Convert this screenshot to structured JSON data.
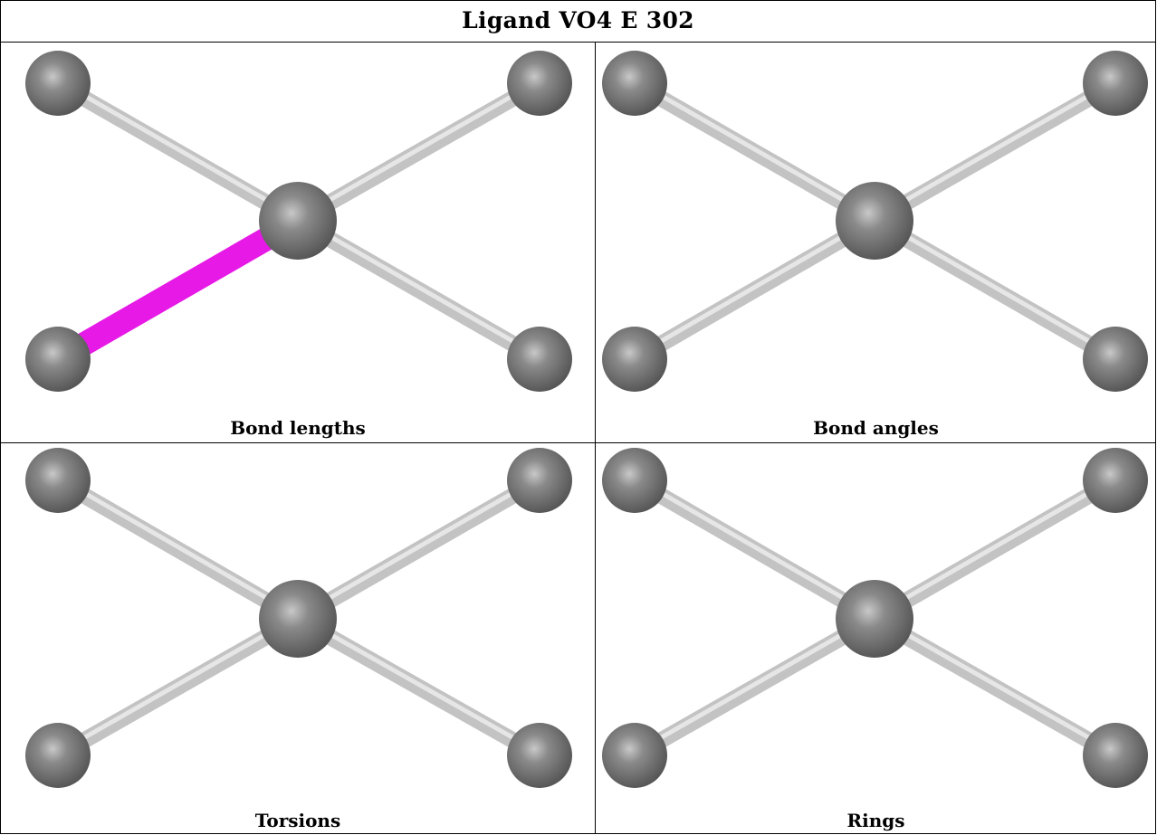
{
  "title": "Ligand VO4 E 302",
  "panels": [
    {
      "caption": "Bond lengths",
      "highlight_bond": "bottom-left",
      "highlight_color": "#e619e6"
    },
    {
      "caption": "Bond angles",
      "highlight_bond": null
    },
    {
      "caption": "Torsions",
      "highlight_bond": null
    },
    {
      "caption": "Rings",
      "highlight_bond": null
    }
  ],
  "colors": {
    "atom": "#6e6e6e",
    "bond": "#c3c3c3",
    "border": "#000000"
  }
}
